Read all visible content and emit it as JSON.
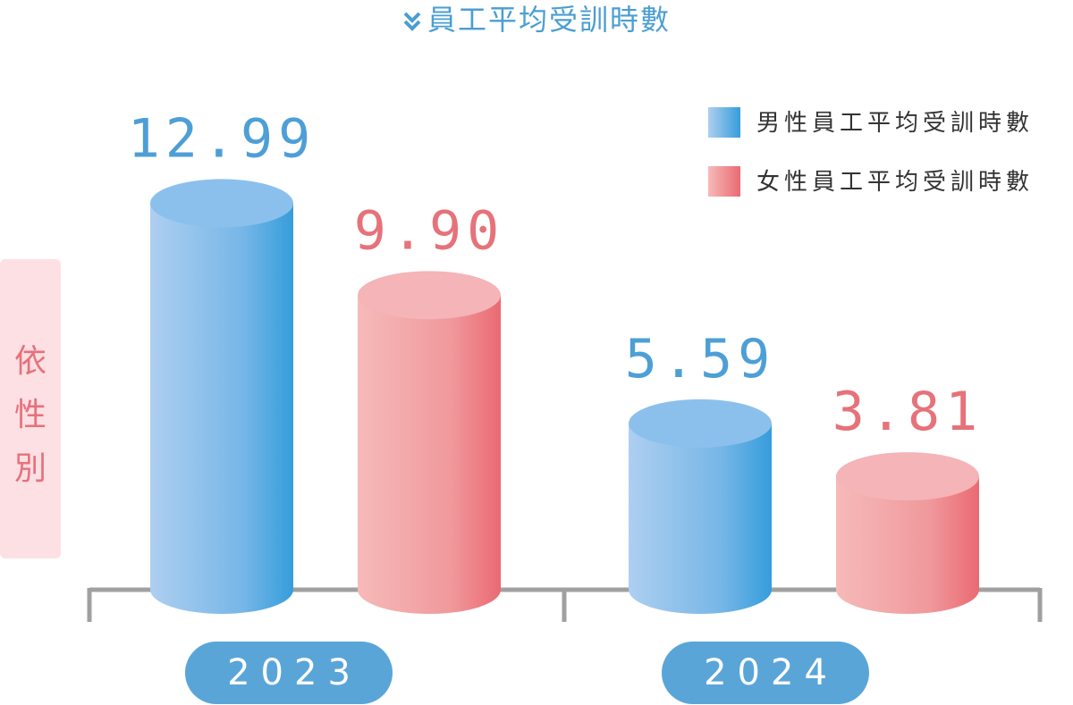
{
  "chart_data": {
    "type": "bar",
    "title": "員工平均受訓時數",
    "ylabel": "依性別",
    "categories": [
      "2023",
      "2024"
    ],
    "series": [
      {
        "name": "男性員工平均受訓時數",
        "values": [
          12.99,
          5.59
        ],
        "value_labels": [
          "12.99",
          "5.59"
        ],
        "color": "#4aa3de"
      },
      {
        "name": "女性員工平均受訓時數",
        "values": [
          9.9,
          3.81
        ],
        "value_labels": [
          "9.90",
          "3.81"
        ],
        "color": "#ec6b74"
      }
    ],
    "ylim": [
      0,
      16
    ],
    "grid": false,
    "legend": "top-right"
  },
  "colors": {
    "title": "#4a9ed3",
    "male_light": "#a9cdf0",
    "male_dark": "#3b9fdc",
    "female_light": "#f6b3b5",
    "female_dark": "#ec6b74",
    "axis": "#a0a0a0",
    "year_pill": "#5aa5d8",
    "ylabel_bg": "#fde0e3"
  },
  "icons": {
    "title_icon": "double-chevron-down-icon"
  }
}
